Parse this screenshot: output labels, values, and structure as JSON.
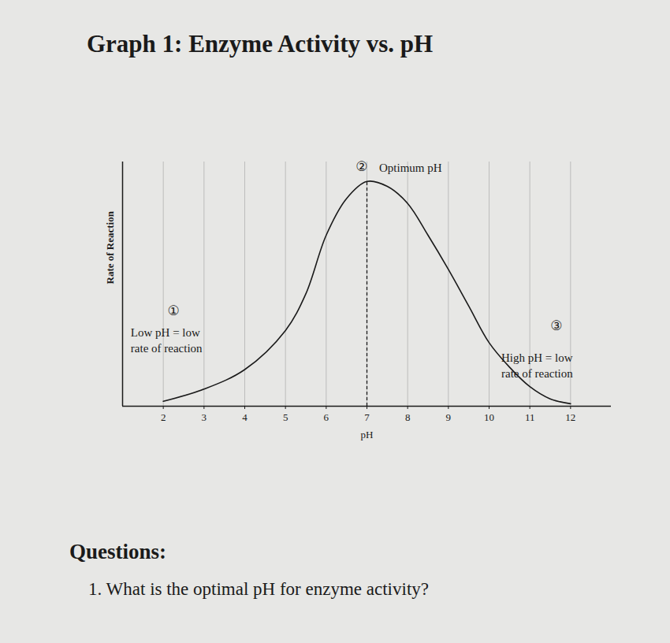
{
  "chart_data": {
    "type": "line",
    "title": "Graph 1: Enzyme Activity vs. pH",
    "x_label": "pH",
    "y_label": "Rate of Reaction",
    "x": [
      2,
      3,
      4,
      5,
      5.5,
      6,
      6.5,
      7,
      7.5,
      8,
      8.5,
      9,
      9.5,
      10,
      10.5,
      11,
      11.5,
      12
    ],
    "values": [
      0.2,
      0.7,
      1.5,
      3.1,
      4.6,
      7.0,
      8.5,
      9.2,
      9.0,
      8.3,
      7.0,
      5.6,
      4.1,
      2.6,
      1.6,
      0.8,
      0.3,
      0.1
    ],
    "color": "#1a1a1a",
    "line_style": "solid",
    "xlim": [
      1,
      13
    ],
    "xticks": [
      2,
      3,
      4,
      5,
      6,
      7,
      8,
      9,
      10,
      11,
      12
    ],
    "ylim": [
      0,
      10
    ],
    "yticks": [],
    "tick_labels": "x",
    "grid": true,
    "optimum": 7,
    "annotations": [
      {
        "symbol": "①",
        "text": "Low pH = low\nrate of reaction"
      },
      {
        "symbol": "②",
        "text": "Optimum pH"
      },
      {
        "symbol": "③",
        "text": "High pH = low\nrate of reaction"
      }
    ]
  },
  "questions": {
    "heading": "Questions:",
    "items": [
      "1. What is the optimal pH for enzyme activity?"
    ]
  }
}
